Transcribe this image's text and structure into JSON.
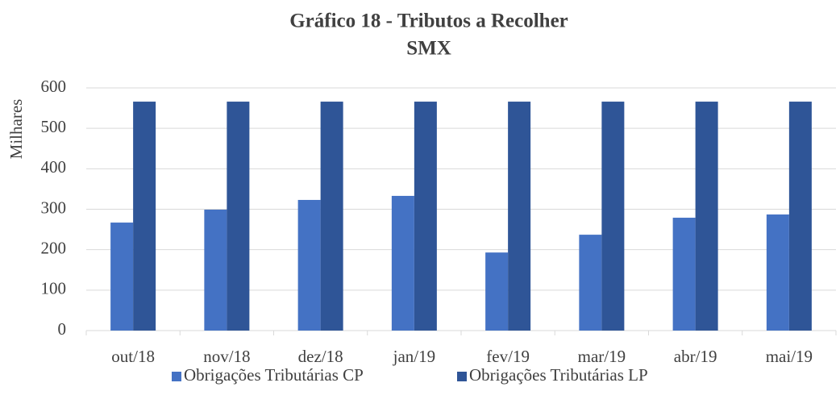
{
  "chart_data": {
    "type": "bar",
    "title": [
      "Gráfico 18 - Tributos a Recolher",
      "SMX"
    ],
    "y_label": "Milhares",
    "categories": [
      "out/18",
      "nov/18",
      "dez/18",
      "jan/19",
      "fev/19",
      "mar/19",
      "abr/19",
      "mai/19"
    ],
    "series": [
      {
        "name": "Obrigações Tributárias CP",
        "color": "#4472c4",
        "values": [
          267,
          299,
          323,
          333,
          193,
          237,
          279,
          287
        ]
      },
      {
        "name": "Obrigações Tributárias LP",
        "color": "#2f5597",
        "values": [
          566,
          566,
          566,
          566,
          566,
          566,
          566,
          566
        ]
      }
    ],
    "ylim": [
      0,
      600
    ],
    "yticks": [
      0,
      100,
      200,
      300,
      400,
      500,
      600
    ],
    "grid": true,
    "legend": "bottom"
  }
}
